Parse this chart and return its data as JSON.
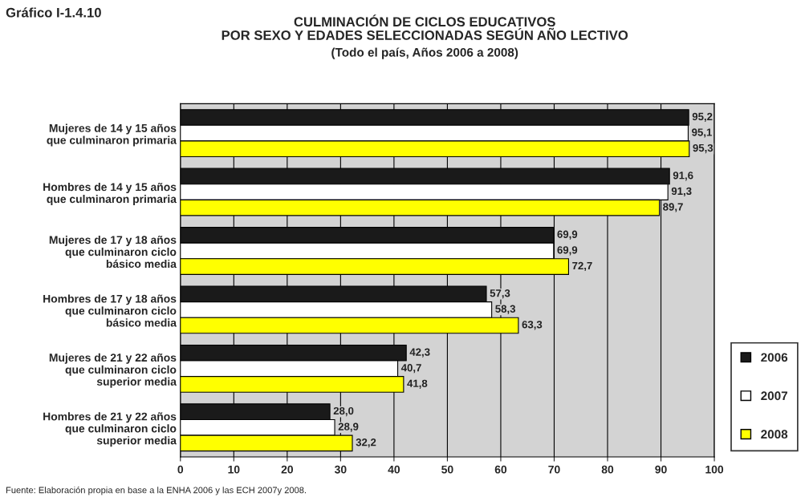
{
  "chart_data": {
    "type": "bar",
    "orientation": "horizontal",
    "title": "CULMINACIÓN DE CICLOS EDUCATIVOS\nPOR SEXO Y EDADES SELECCIONADAS SEGÚN AÑO LECTIVO",
    "subtitle": "(Todo el país, Años 2006 a 2008)",
    "categories": [
      "Mujeres de 14 y 15 años\nque culminaron primaria",
      "Hombres de 14 y 15 años\nque culminaron primaria",
      "Mujeres de 17 y 18 años\nque culminaron ciclo\nbásico media",
      "Hombres de 17 y 18 años\nque culminaron ciclo\nbásico media",
      "Mujeres de 21 y 22 años\nque culminaron ciclo\nsuperior media",
      "Hombres de 21 y 22 años\nque culminaron ciclo\nsuperior media"
    ],
    "series": [
      {
        "name": "2006",
        "color": "#1a1a1a",
        "values": [
          95.2,
          91.6,
          69.9,
          57.3,
          42.3,
          28.0
        ],
        "value_labels": [
          "95,2",
          "91,6",
          "69,9",
          "57,3",
          "42,3",
          "28,0"
        ]
      },
      {
        "name": "2007",
        "color": "#ffffff",
        "values": [
          95.1,
          91.3,
          69.9,
          58.3,
          40.7,
          28.9
        ],
        "value_labels": [
          "95,1",
          "91,3",
          "69,9",
          "58,3",
          "40,7",
          "28,9"
        ]
      },
      {
        "name": "2008",
        "color": "#ffff00",
        "values": [
          95.3,
          89.7,
          72.7,
          63.3,
          41.8,
          32.2
        ],
        "value_labels": [
          "95,3",
          "89,7",
          "72,7",
          "63,3",
          "41,8",
          "32,2"
        ]
      }
    ],
    "xlim": [
      0,
      100
    ],
    "xticks": [
      0,
      10,
      20,
      30,
      40,
      50,
      60,
      70,
      80,
      90,
      100
    ],
    "grid": "x",
    "legend": "bottom right",
    "annotations": [
      "Gráfico I-1.4.10",
      "Fuente: Elaboración propia en base a la ENHA 2006 y las ECH 2007y 2008."
    ]
  }
}
